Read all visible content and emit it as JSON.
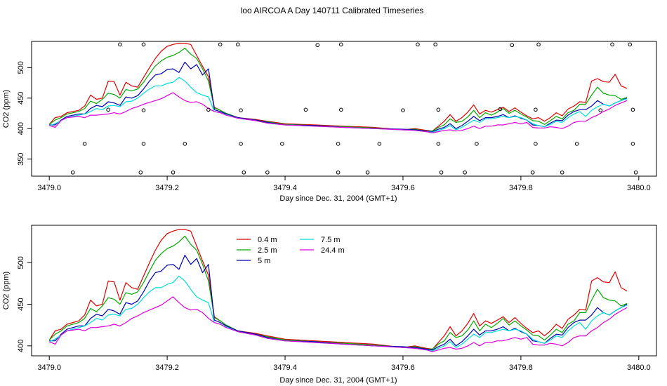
{
  "title": "loo AIRCOA A  Day 140711  Calibrated Timeseries",
  "chart_data": [
    {
      "type": "line",
      "xlabel": "Day since Dec. 31, 2004 (GMT+1)",
      "ylabel": "CO2 (ppm)",
      "xlim": [
        3478.97,
        3480.03
      ],
      "ylim": [
        322,
        543
      ],
      "xticks": [
        3479.0,
        3479.2,
        3479.4,
        3479.6,
        3479.8,
        3480.0
      ],
      "xtick_labels": [
        "3479.0",
        "3479.2",
        "3479.4",
        "3479.6",
        "3479.8",
        "3480.0"
      ],
      "yticks": [
        350,
        400,
        450,
        500
      ],
      "ytick_labels": [
        "350",
        "400",
        "450",
        "500"
      ],
      "legend": "none",
      "markers": [
        [
          3479.04,
          328
        ],
        [
          3479.06,
          375
        ],
        [
          3479.1,
          431
        ],
        [
          3479.12,
          538
        ],
        [
          3479.155,
          328
        ],
        [
          3479.16,
          375
        ],
        [
          3479.16,
          430
        ],
        [
          3479.16,
          538
        ],
        [
          3479.21,
          328
        ],
        [
          3479.23,
          375
        ],
        [
          3479.27,
          431
        ],
        [
          3479.29,
          538
        ],
        [
          3479.32,
          538
        ],
        [
          3479.325,
          375
        ],
        [
          3479.325,
          430
        ],
        [
          3479.33,
          328
        ],
        [
          3479.37,
          328
        ],
        [
          3479.395,
          375
        ],
        [
          3479.435,
          431
        ],
        [
          3479.455,
          537
        ],
        [
          3479.49,
          328
        ],
        [
          3479.49,
          375
        ],
        [
          3479.495,
          431
        ],
        [
          3479.495,
          538
        ],
        [
          3479.54,
          328
        ],
        [
          3479.56,
          375
        ],
        [
          3479.6,
          430
        ],
        [
          3479.625,
          538
        ],
        [
          3479.655,
          538
        ],
        [
          3479.66,
          431
        ],
        [
          3479.66,
          375
        ],
        [
          3479.665,
          328
        ],
        [
          3479.705,
          328
        ],
        [
          3479.725,
          375
        ],
        [
          3479.765,
          432
        ],
        [
          3479.785,
          537
        ],
        [
          3479.82,
          328
        ],
        [
          3479.825,
          375
        ],
        [
          3479.825,
          431
        ],
        [
          3479.83,
          538
        ],
        [
          3479.87,
          328
        ],
        [
          3479.895,
          375
        ],
        [
          3479.935,
          430
        ],
        [
          3479.955,
          538
        ],
        [
          3479.985,
          538
        ],
        [
          3479.99,
          431
        ],
        [
          3479.99,
          375
        ],
        [
          3479.995,
          328
        ]
      ]
    },
    {
      "type": "line",
      "xlabel": "Day since Dec. 31, 2004 (GMT+1)",
      "ylabel": "CO2 (ppm)",
      "xlim": [
        3478.97,
        3480.03
      ],
      "ylim": [
        388,
        545
      ],
      "xticks": [
        3479.0,
        3479.2,
        3479.4,
        3479.6,
        3479.8,
        3480.0
      ],
      "xtick_labels": [
        "3479.0",
        "3479.2",
        "3479.4",
        "3479.6",
        "3479.8",
        "3480.0"
      ],
      "yticks": [
        400,
        450,
        500
      ],
      "ytick_labels": [
        "400",
        "450",
        "500"
      ],
      "legend": "top-left",
      "legend_order": [
        0,
        1,
        2,
        3,
        4
      ]
    }
  ],
  "series": [
    {
      "name": "0.4 m",
      "color": "#dd0000",
      "x": [
        3479.0,
        3479.01,
        3479.02,
        3479.03,
        3479.05,
        3479.06,
        3479.07,
        3479.08,
        3479.09,
        3479.1,
        3479.11,
        3479.12,
        3479.13,
        3479.14,
        3479.15,
        3479.16,
        3479.17,
        3479.18,
        3479.19,
        3479.2,
        3479.21,
        3479.22,
        3479.23,
        3479.24,
        3479.25,
        3479.26,
        3479.27,
        3479.28,
        3479.29,
        3479.3,
        3479.32,
        3479.35,
        3479.37,
        3479.4,
        3479.45,
        3479.5,
        3479.55,
        3479.6,
        3479.62,
        3479.64,
        3479.65,
        3479.66,
        3479.67,
        3479.68,
        3479.69,
        3479.7,
        3479.71,
        3479.72,
        3479.73,
        3479.74,
        3479.75,
        3479.76,
        3479.77,
        3479.78,
        3479.79,
        3479.8,
        3479.81,
        3479.82,
        3479.83,
        3479.84,
        3479.85,
        3479.86,
        3479.87,
        3479.88,
        3479.89,
        3479.9,
        3479.91,
        3479.92,
        3479.93,
        3479.94,
        3479.95,
        3479.96,
        3479.97,
        3479.98
      ],
      "values": [
        407,
        418,
        420,
        426,
        430,
        437,
        455,
        448,
        450,
        478,
        477,
        455,
        476,
        470,
        468,
        484,
        500,
        515,
        527,
        535,
        538,
        540,
        540,
        538,
        520,
        502,
        485,
        435,
        430,
        425,
        418,
        415,
        412,
        408,
        406,
        404,
        402,
        398,
        400,
        397,
        396,
        404,
        412,
        423,
        412,
        418,
        427,
        439,
        424,
        430,
        427,
        431,
        435,
        428,
        434,
        427,
        421,
        416,
        418,
        412,
        418,
        426,
        421,
        432,
        437,
        444,
        443,
        478,
        482,
        477,
        476,
        489,
        470,
        466
      ]
    },
    {
      "name": "2.5 m",
      "color": "#00aa00",
      "x": [
        3479.0,
        3479.01,
        3479.02,
        3479.03,
        3479.05,
        3479.06,
        3479.07,
        3479.08,
        3479.09,
        3479.1,
        3479.11,
        3479.12,
        3479.13,
        3479.14,
        3479.15,
        3479.16,
        3479.17,
        3479.18,
        3479.19,
        3479.2,
        3479.21,
        3479.22,
        3479.23,
        3479.24,
        3479.25,
        3479.26,
        3479.27,
        3479.28,
        3479.29,
        3479.3,
        3479.32,
        3479.35,
        3479.37,
        3479.4,
        3479.45,
        3479.5,
        3479.55,
        3479.6,
        3479.62,
        3479.64,
        3479.65,
        3479.66,
        3479.67,
        3479.68,
        3479.69,
        3479.7,
        3479.71,
        3479.72,
        3479.73,
        3479.74,
        3479.75,
        3479.76,
        3479.77,
        3479.78,
        3479.79,
        3479.8,
        3479.81,
        3479.82,
        3479.83,
        3479.84,
        3479.85,
        3479.86,
        3479.87,
        3479.88,
        3479.89,
        3479.9,
        3479.91,
        3479.92,
        3479.93,
        3479.94,
        3479.95,
        3479.96,
        3479.97,
        3479.98
      ],
      "values": [
        407,
        414,
        418,
        424,
        428,
        433,
        445,
        441,
        448,
        458,
        456,
        450,
        464,
        462,
        465,
        476,
        490,
        503,
        511,
        517,
        520,
        525,
        532,
        522,
        515,
        498,
        478,
        434,
        430,
        425,
        418,
        414,
        411,
        407,
        405,
        403,
        401,
        398,
        399,
        396,
        396,
        402,
        406,
        416,
        410,
        412,
        419,
        430,
        418,
        426,
        422,
        427,
        433,
        425,
        430,
        424,
        419,
        413,
        412,
        407,
        413,
        420,
        416,
        426,
        430,
        440,
        440,
        455,
        468,
        458,
        455,
        454,
        448,
        451
      ]
    },
    {
      "name": "5 m",
      "color": "#0000aa",
      "x": [
        3479.0,
        3479.01,
        3479.02,
        3479.03,
        3479.05,
        3479.06,
        3479.07,
        3479.08,
        3479.09,
        3479.1,
        3479.11,
        3479.12,
        3479.13,
        3479.14,
        3479.15,
        3479.16,
        3479.17,
        3479.18,
        3479.19,
        3479.2,
        3479.21,
        3479.22,
        3479.23,
        3479.24,
        3479.25,
        3479.26,
        3479.27,
        3479.28,
        3479.29,
        3479.3,
        3479.32,
        3479.35,
        3479.37,
        3479.4,
        3479.45,
        3479.5,
        3479.55,
        3479.6,
        3479.62,
        3479.64,
        3479.65,
        3479.66,
        3479.67,
        3479.68,
        3479.69,
        3479.7,
        3479.71,
        3479.72,
        3479.73,
        3479.74,
        3479.75,
        3479.76,
        3479.77,
        3479.78,
        3479.79,
        3479.8,
        3479.81,
        3479.82,
        3479.83,
        3479.84,
        3479.85,
        3479.86,
        3479.87,
        3479.88,
        3479.89,
        3479.9,
        3479.91,
        3479.92,
        3479.93,
        3479.94,
        3479.95,
        3479.96,
        3479.97,
        3479.98
      ],
      "values": [
        406,
        406,
        414,
        420,
        424,
        424,
        433,
        438,
        436,
        444,
        442,
        438,
        452,
        450,
        454,
        465,
        478,
        488,
        490,
        497,
        498,
        492,
        509,
        498,
        505,
        488,
        498,
        431,
        428,
        424,
        418,
        414,
        410,
        406,
        405,
        402,
        400,
        399,
        398,
        396,
        395,
        399,
        402,
        408,
        400,
        405,
        412,
        420,
        413,
        418,
        418,
        420,
        423,
        418,
        421,
        417,
        414,
        406,
        405,
        403,
        409,
        414,
        413,
        422,
        428,
        431,
        431,
        437,
        446,
        440,
        437,
        442,
        446,
        450
      ]
    },
    {
      "name": "7.5 m",
      "color": "#00dddd",
      "x": [
        3479.0,
        3479.01,
        3479.02,
        3479.03,
        3479.05,
        3479.06,
        3479.07,
        3479.08,
        3479.09,
        3479.1,
        3479.11,
        3479.12,
        3479.13,
        3479.14,
        3479.15,
        3479.16,
        3479.17,
        3479.18,
        3479.19,
        3479.2,
        3479.21,
        3479.22,
        3479.23,
        3479.24,
        3479.25,
        3479.26,
        3479.27,
        3479.28,
        3479.29,
        3479.3,
        3479.32,
        3479.35,
        3479.37,
        3479.4,
        3479.45,
        3479.5,
        3479.55,
        3479.6,
        3479.62,
        3479.64,
        3479.65,
        3479.66,
        3479.67,
        3479.68,
        3479.69,
        3479.7,
        3479.71,
        3479.72,
        3479.73,
        3479.74,
        3479.75,
        3479.76,
        3479.77,
        3479.78,
        3479.79,
        3479.8,
        3479.81,
        3479.82,
        3479.83,
        3479.84,
        3479.85,
        3479.86,
        3479.87,
        3479.88,
        3479.89,
        3479.9,
        3479.91,
        3479.92,
        3479.93,
        3479.94,
        3479.95,
        3479.96,
        3479.97,
        3479.98
      ],
      "values": [
        405,
        408,
        413,
        418,
        422,
        424,
        428,
        433,
        431,
        437,
        438,
        436,
        444,
        445,
        450,
        458,
        465,
        470,
        470,
        474,
        476,
        484,
        478,
        468,
        459,
        455,
        452,
        428,
        426,
        423,
        417,
        413,
        409,
        406,
        404,
        402,
        400,
        398,
        397,
        395,
        394,
        397,
        400,
        405,
        398,
        402,
        408,
        414,
        410,
        416,
        416,
        418,
        420,
        418,
        420,
        418,
        414,
        408,
        405,
        403,
        407,
        412,
        410,
        418,
        424,
        428,
        420,
        430,
        436,
        440,
        437,
        442,
        446,
        449
      ]
    },
    {
      "name": "24.4 m",
      "color": "#dd00dd",
      "x": [
        3479.0,
        3479.01,
        3479.02,
        3479.03,
        3479.05,
        3479.06,
        3479.07,
        3479.08,
        3479.09,
        3479.1,
        3479.11,
        3479.12,
        3479.13,
        3479.14,
        3479.15,
        3479.16,
        3479.17,
        3479.18,
        3479.19,
        3479.2,
        3479.21,
        3479.22,
        3479.23,
        3479.24,
        3479.25,
        3479.26,
        3479.27,
        3479.28,
        3479.29,
        3479.3,
        3479.32,
        3479.35,
        3479.37,
        3479.4,
        3479.45,
        3479.5,
        3479.55,
        3479.6,
        3479.62,
        3479.64,
        3479.65,
        3479.66,
        3479.67,
        3479.68,
        3479.69,
        3479.7,
        3479.71,
        3479.72,
        3479.73,
        3479.74,
        3479.75,
        3479.76,
        3479.77,
        3479.78,
        3479.79,
        3479.8,
        3479.81,
        3479.82,
        3479.83,
        3479.84,
        3479.85,
        3479.86,
        3479.87,
        3479.88,
        3479.89,
        3479.9,
        3479.91,
        3479.92,
        3479.93,
        3479.94,
        3479.95,
        3479.96,
        3479.97,
        3479.98
      ],
      "values": [
        405,
        402,
        413,
        418,
        420,
        418,
        422,
        422,
        423,
        424,
        426,
        424,
        428,
        433,
        436,
        440,
        443,
        446,
        449,
        454,
        459,
        452,
        446,
        443,
        444,
        440,
        433,
        428,
        426,
        422,
        417,
        413,
        409,
        406,
        404,
        402,
        400,
        398,
        397,
        395,
        393,
        395,
        397,
        398,
        396,
        397,
        400,
        404,
        400,
        404,
        404,
        406,
        406,
        408,
        410,
        408,
        410,
        402,
        401,
        401,
        403,
        402,
        400,
        404,
        410,
        412,
        412,
        418,
        422,
        428,
        432,
        438,
        442,
        446
      ]
    }
  ]
}
